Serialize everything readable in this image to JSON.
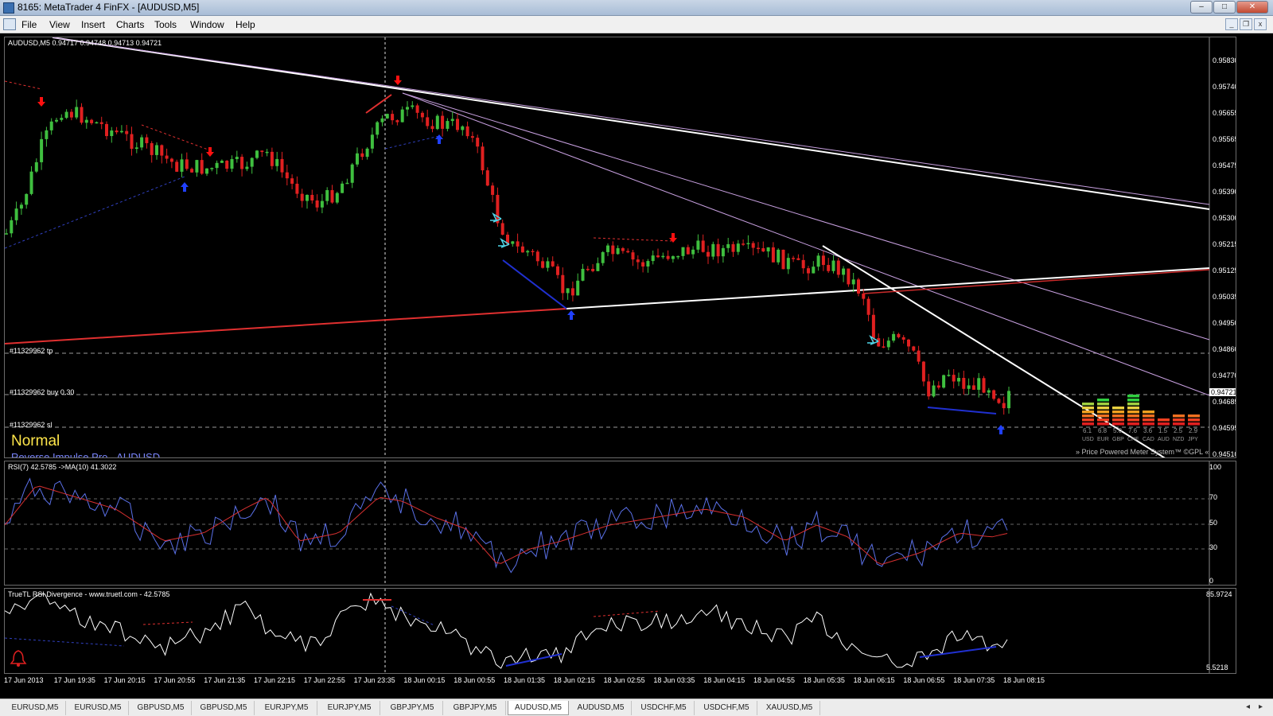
{
  "window": {
    "title": "8165: MetaTrader 4 FinFX - [AUDUSD,M5]"
  },
  "menu": [
    "File",
    "View",
    "Insert",
    "Charts",
    "Tools",
    "Window",
    "Help"
  ],
  "main_chart": {
    "header": "AUDUSD,M5  0.94717 0.94748 0.94713 0.94721",
    "price_labels": [
      "0.95830",
      "0.95740",
      "0.95655",
      "0.95565",
      "0.95475",
      "0.95390",
      "0.95300",
      "0.95215",
      "0.95125",
      "0.95035",
      "0.94950",
      "0.94860",
      "0.94770",
      "0.94685",
      "0.94595",
      "0.94510"
    ],
    "current_price": "0.94721",
    "order_lines": {
      "tp": "#11329962 tp",
      "buy": "#11329962 buy 0.30",
      "sl": "#11329962 sl"
    },
    "status_text": "Normal",
    "indicator_name": "Reverse Impulse Pro - AUDUSD",
    "power_meter_caption": "» Price Powered Meter System™ ©GPL «",
    "currency_meter": [
      {
        "currency": "USD",
        "value": "6.1"
      },
      {
        "currency": "EUR",
        "value": "6.8"
      },
      {
        "currency": "GBP",
        "value": "5.0"
      },
      {
        "currency": "CHF",
        "value": "7.6"
      },
      {
        "currency": "CAD",
        "value": "3.6"
      },
      {
        "currency": "AUD",
        "value": "1.5"
      },
      {
        "currency": "NZD",
        "value": "2.5"
      },
      {
        "currency": "JPY",
        "value": "2.9"
      }
    ],
    "colors": {
      "bull_candle": "#3fbf3f",
      "bear_candle": "#e02020",
      "trend_white": "#ffffff",
      "trend_red": "#e03030",
      "trend_purple": "#c8a0e0",
      "arrow_up": "#2040ff",
      "arrow_down": "#ff1010"
    }
  },
  "rsi_panel": {
    "header": "RSI(7) 42.5785  ->MA(10) 41.3022",
    "levels": [
      "100",
      "70",
      "50",
      "30",
      "0"
    ]
  },
  "divergence_panel": {
    "header": "TrueTL RSI Divergence - www.truetl.com -  42.5785",
    "max_label": "85.9724",
    "min_label": "5.5218"
  },
  "time_axis": [
    "17 Jun 2013",
    "17 Jun 19:35",
    "17 Jun 20:15",
    "17 Jun 20:55",
    "17 Jun 21:35",
    "17 Jun 22:15",
    "17 Jun 22:55",
    "17 Jun 23:35",
    "18 Jun 00:15",
    "18 Jun 00:55",
    "18 Jun 01:35",
    "18 Jun 02:15",
    "18 Jun 02:55",
    "18 Jun 03:35",
    "18 Jun 04:15",
    "18 Jun 04:55",
    "18 Jun 05:35",
    "18 Jun 06:15",
    "18 Jun 06:55",
    "18 Jun 07:35",
    "18 Jun 08:15"
  ],
  "tabs": {
    "items": [
      "EURUSD,M5",
      "EURUSD,M5",
      "GBPUSD,M5",
      "GBPUSD,M5",
      "EURJPY,M5",
      "EURJPY,M5",
      "GBPJPY,M5",
      "GBPJPY,M5",
      "AUDUSD,M5",
      "AUDUSD,M5",
      "USDCHF,M5",
      "USDCHF,M5",
      "XAUUSD,M5"
    ],
    "active_index": 8
  }
}
